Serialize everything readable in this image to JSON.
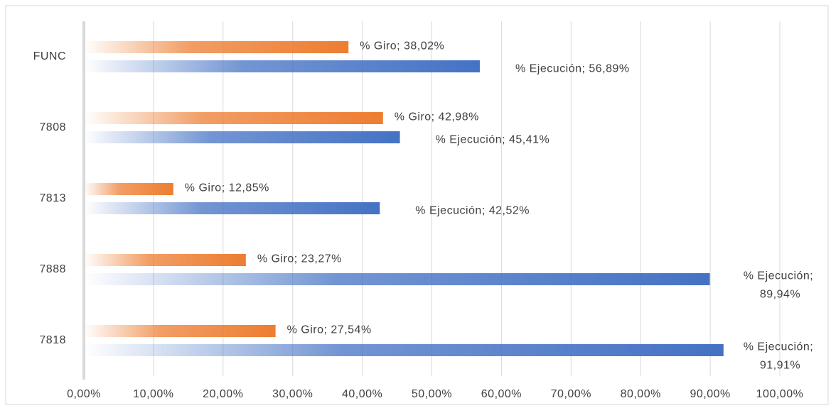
{
  "chart_data": {
    "type": "barh",
    "categories": [
      "FUNC",
      "7808",
      "7813",
      "7888",
      "7818"
    ],
    "series": [
      {
        "color": "#ed7d31",
        "values": [
          38.02,
          42.98,
          12.85,
          23.27,
          27.54
        ],
        "value_labels": [
          "% Giro; 38,02%",
          "% Giro; 42,98%",
          "% Giro; 12,85%",
          "% Giro; 23,27%",
          "% Giro; 27,54%"
        ]
      },
      {
        "color": "#4472c4",
        "values": [
          56.89,
          45.41,
          42.52,
          89.94,
          91.91
        ],
        "value_labels": [
          "% Ejecución; 56,89%",
          "% Ejecución; 45,41%",
          "% Ejecución; 42,52%",
          "% Ejecución; 89,94%",
          "% Ejecución; 91,91%"
        ]
      }
    ],
    "xlim": [
      0,
      100
    ],
    "xticks": [
      {
        "value": 0,
        "label": "0,00%"
      },
      {
        "value": 10,
        "label": "10,00%"
      },
      {
        "value": 20,
        "label": "20,00%"
      },
      {
        "value": 30,
        "label": "30,00%"
      },
      {
        "value": 40,
        "label": "40,00%"
      },
      {
        "value": 50,
        "label": "50,00%"
      },
      {
        "value": 60,
        "label": "60,00%"
      },
      {
        "value": 70,
        "label": "70,00%"
      },
      {
        "value": 80,
        "label": "80,00%"
      },
      {
        "value": 90,
        "label": "90,00%"
      },
      {
        "value": 100,
        "label": "100,00%"
      }
    ],
    "grid": true
  }
}
